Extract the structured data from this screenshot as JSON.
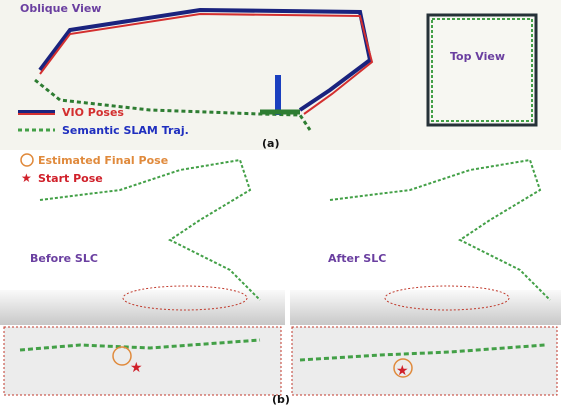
{
  "panel_a": {
    "oblique_title": "Oblique View",
    "top_title": "Top View",
    "legend": [
      "VIO Poses",
      "Semantic SLAM Traj."
    ],
    "label": "(a)"
  },
  "panel_b": {
    "legend": [
      "Estimated Final Pose",
      "Start Pose"
    ],
    "before_title": "Before SLC",
    "after_title": "After SLC",
    "label": "(b)"
  }
}
